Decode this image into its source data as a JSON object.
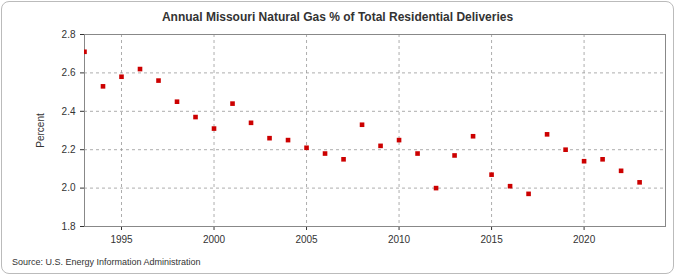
{
  "chart_data": {
    "type": "scatter",
    "title": "Annual Missouri Natural Gas % of Total Residential Deliveries",
    "y_label": "Percent",
    "source": "Source: U.S. Energy Information Administration",
    "x": [
      1993,
      1994,
      1995,
      1996,
      1997,
      1998,
      1999,
      2000,
      2001,
      2002,
      2003,
      2004,
      2005,
      2006,
      2007,
      2008,
      2009,
      2010,
      2011,
      2012,
      2013,
      2014,
      2015,
      2016,
      2017,
      2018,
      2019,
      2020,
      2021,
      2022,
      2023
    ],
    "values": [
      2.71,
      2.53,
      2.58,
      2.62,
      2.56,
      2.45,
      2.37,
      2.31,
      2.44,
      2.34,
      2.26,
      2.25,
      2.21,
      2.18,
      2.15,
      2.33,
      2.22,
      2.25,
      2.18,
      2.0,
      2.17,
      2.27,
      2.07,
      2.01,
      1.97,
      2.28,
      2.2,
      2.14,
      2.15,
      2.09,
      2.03
    ],
    "color": "#cc0000",
    "marker": "square",
    "xlim": [
      1993,
      2024.4
    ],
    "xticks": [
      1995,
      2000,
      2005,
      2010,
      2015,
      2020
    ],
    "ylim": [
      1.8,
      2.8
    ],
    "yticks": [
      1.8,
      {
        "value": 2,
        "label": "2.0"
      },
      2.2,
      2.4,
      2.6,
      2.8
    ],
    "grid": true
  }
}
